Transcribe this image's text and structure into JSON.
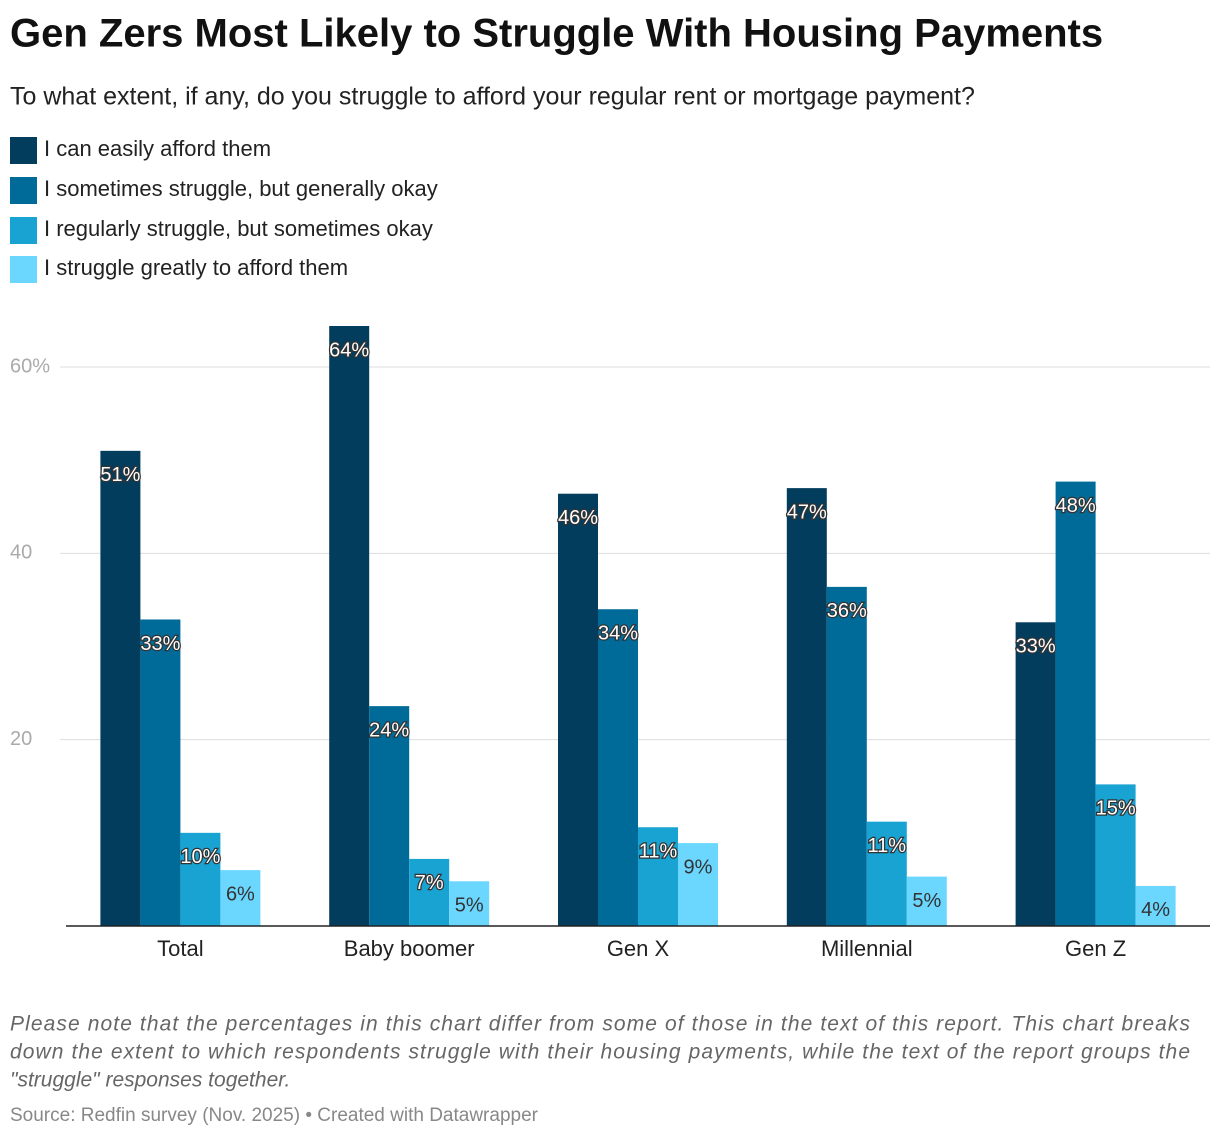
{
  "chart_data": {
    "type": "bar",
    "title": "Gen Zers Most Likely to Struggle With Housing Payments",
    "subtitle": "To what extent, if any, do you struggle to afford your regular rent or mortgage payment?",
    "categories": [
      "Total",
      "Baby boomer",
      "Gen X",
      "Millennial",
      "Gen Z"
    ],
    "series": [
      {
        "name": "I can easily afford them",
        "color": "#023d5e",
        "values": [
          51.0,
          64.4,
          46.4,
          47.0,
          32.6
        ],
        "value_labels": [
          "51%",
          "64%",
          "46%",
          "47%",
          "33%"
        ]
      },
      {
        "name": "I sometimes struggle, but generally okay",
        "color": "#006b98",
        "values": [
          32.9,
          23.6,
          34.0,
          36.4,
          47.7
        ],
        "value_labels": [
          "33%",
          "24%",
          "34%",
          "36%",
          "48%"
        ]
      },
      {
        "name": "I regularly struggle, but sometimes okay",
        "color": "#19a3d2",
        "values": [
          10.0,
          7.2,
          10.6,
          11.2,
          15.2
        ],
        "value_labels": [
          "10%",
          "7%",
          "11%",
          "11%",
          "15%"
        ]
      },
      {
        "name": "I struggle greatly to afford them",
        "color": "#6bd7ff",
        "values": [
          6.0,
          4.8,
          8.9,
          5.3,
          4.3
        ],
        "value_labels": [
          "6%",
          "5%",
          "9%",
          "5%",
          "4%"
        ]
      }
    ],
    "ylim": [
      0,
      65
    ],
    "yticks": [
      20,
      40,
      {
        "value": 60,
        "label": "60%"
      }
    ],
    "grid": true,
    "legend": "top-left",
    "note": [
      "Please note that the percentages in this chart differ from some of those in the text of this report. This chart breaks",
      "down the extent to which respondents struggle with their housing payments, while the text of the report groups the",
      "\"struggle\" responses together."
    ],
    "source": "Source: Redfin survey (Nov. 2025) • Created with Datawrapper"
  }
}
